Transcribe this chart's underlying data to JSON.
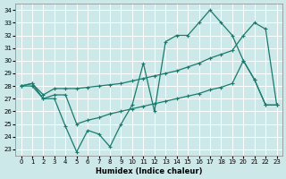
{
  "bg_color": "#cce8e8",
  "grid_color": "#ffffff",
  "line_color": "#1a7a6e",
  "xlabel": "Humidex (Indice chaleur)",
  "xlim": [
    -0.5,
    23.5
  ],
  "ylim": [
    22.5,
    34.5
  ],
  "yticks": [
    23,
    24,
    25,
    26,
    27,
    28,
    29,
    30,
    31,
    32,
    33,
    34
  ],
  "xticks": [
    0,
    1,
    2,
    3,
    4,
    5,
    6,
    7,
    8,
    9,
    10,
    11,
    12,
    13,
    14,
    15,
    16,
    17,
    18,
    19,
    20,
    21,
    22,
    23
  ],
  "line1_x": [
    0,
    1,
    2,
    3,
    4,
    5,
    6,
    7,
    8,
    9,
    10,
    11,
    12,
    13,
    14,
    15,
    16,
    17,
    18,
    19,
    20,
    21,
    22,
    23
  ],
  "line1_y": [
    28.0,
    28.2,
    27.0,
    27.0,
    24.8,
    22.8,
    24.5,
    24.2,
    23.2,
    25.0,
    26.5,
    29.8,
    26.0,
    31.5,
    32.0,
    32.0,
    33.0,
    34.0,
    33.0,
    32.0,
    30.0,
    28.5,
    26.5,
    26.5
  ],
  "line2_x": [
    0,
    1,
    2,
    3,
    4,
    5,
    6,
    7,
    8,
    9,
    10,
    11,
    12,
    13,
    14,
    15,
    16,
    17,
    18,
    19,
    20,
    21,
    22,
    23
  ],
  "line2_y": [
    28.0,
    28.2,
    27.3,
    27.8,
    27.8,
    27.8,
    27.9,
    28.0,
    28.1,
    28.2,
    28.4,
    28.6,
    28.8,
    29.0,
    29.2,
    29.5,
    29.8,
    30.2,
    30.5,
    30.8,
    32.0,
    33.0,
    32.5,
    26.5
  ],
  "line3_x": [
    0,
    1,
    2,
    3,
    4,
    5,
    6,
    7,
    8,
    9,
    10,
    11,
    12,
    13,
    14,
    15,
    16,
    17,
    18,
    19,
    20,
    21,
    22,
    23
  ],
  "line3_y": [
    28.0,
    28.0,
    27.0,
    27.3,
    27.3,
    25.0,
    25.3,
    25.5,
    25.8,
    26.0,
    26.2,
    26.4,
    26.6,
    26.8,
    27.0,
    27.2,
    27.4,
    27.7,
    27.9,
    28.2,
    30.0,
    28.5,
    26.5,
    26.5
  ],
  "marker_size": 3,
  "line_width": 0.9,
  "tick_fontsize": 5,
  "xlabel_fontsize": 6
}
